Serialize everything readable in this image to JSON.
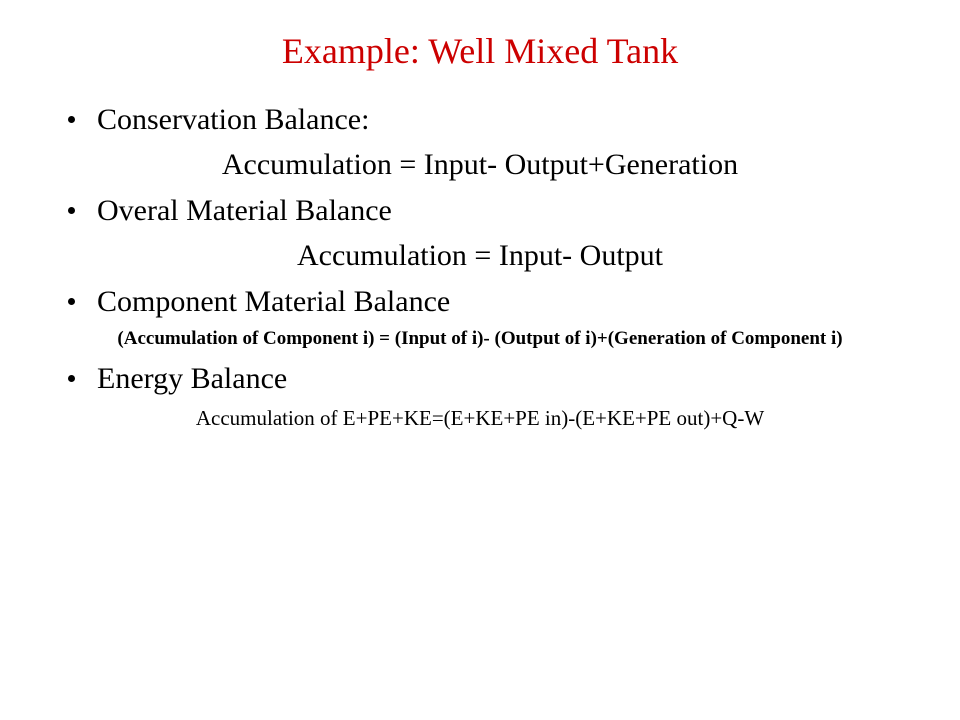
{
  "title": {
    "text": "Example: Well Mixed Tank",
    "color": "#cc0000"
  },
  "items": [
    {
      "bullet": "Conservation Balance:",
      "sub": "Accumulation = Input- Output+Generation",
      "sub_class": "sub"
    },
    {
      "bullet": "Overal Material Balance",
      "sub": "Accumulation = Input- Output",
      "sub_class": "sub"
    },
    {
      "bullet": "Component Material Balance",
      "sub": "(Accumulation of Component i) = (Input of i)- (Output of i)+(Generation of Component i)",
      "sub_class": "sub-small"
    },
    {
      "bullet": "Energy Balance",
      "sub": "Accumulation of E+PE+KE=(E+KE+PE in)-(E+KE+PE out)+Q-W",
      "sub_class": "sub-energy"
    }
  ]
}
